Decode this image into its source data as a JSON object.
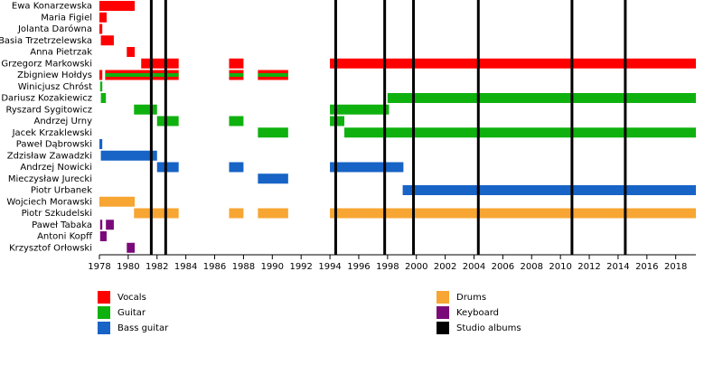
{
  "chart_data": {
    "type": "timeline",
    "categories": [
      "Ewa Konarzewska",
      "Maria Figiel",
      "Jolanta Darówna",
      "Basia Trzetrzelewska",
      "Anna Pietrzak",
      "Grzegorz Markowski",
      "Zbigniew Hołdys",
      "Winicjusz Chróst",
      "Dariusz Kozakiewicz",
      "Ryszard Sygitowicz",
      "Andrzej Urny",
      "Jacek Krzaklewski",
      "Paweł Dąbrowski",
      "Zdzisław Zawadzki",
      "Andrzej Nowicki",
      "Mieczysław Jurecki",
      "Piotr Urbanek",
      "Wojciech Morawski",
      "Piotr Szkudelski",
      "Paweł Tabaka",
      "Antoni Kopff",
      "Krzysztof Orłowski"
    ],
    "series": [
      {
        "name": "Vocals",
        "color": "#ff0000",
        "values": [
          [
            [
              1978,
              1980.45
            ]
          ],
          [
            [
              1978,
              1978.5
            ]
          ],
          [
            [
              1978,
              1978.2
            ]
          ],
          [
            [
              1978.1,
              1979
            ]
          ],
          [
            [
              1979.9,
              1980.45
            ]
          ],
          [
            [
              1980.9,
              1983.5
            ],
            [
              1987,
              1988
            ],
            [
              1994,
              2019.4
            ]
          ],
          [
            [
              1978,
              1978.2
            ],
            [
              1978.4,
              1983.5
            ],
            [
              1987,
              1988
            ],
            [
              1989,
              1991.1
            ]
          ],
          null,
          null,
          null,
          null,
          null,
          null,
          null,
          null,
          null,
          null,
          null,
          null,
          null,
          null,
          null
        ]
      },
      {
        "name": "Guitar",
        "color": "#0fb10f",
        "values": [
          null,
          null,
          null,
          null,
          null,
          null,
          [
            [
              1978.4,
              1983.5
            ],
            [
              1987,
              1988
            ],
            [
              1989,
              1991.1
            ]
          ],
          [
            [
              1978.05,
              1978.2
            ]
          ],
          [
            [
              1978.1,
              1978.45
            ],
            [
              1998,
              2019.4
            ]
          ],
          [
            [
              1980.4,
              1982
            ],
            [
              1994,
              1998.1
            ]
          ],
          [
            [
              1982,
              1983.5
            ],
            [
              1987,
              1988
            ],
            [
              1994,
              1995
            ]
          ],
          [
            [
              1989,
              1991.1
            ],
            [
              1995,
              2019.4
            ]
          ],
          null,
          null,
          null,
          null,
          null,
          null,
          null,
          null,
          null,
          null
        ]
      },
      {
        "name": "Bass guitar",
        "color": "#1763c6",
        "values": [
          null,
          null,
          null,
          null,
          null,
          null,
          null,
          null,
          null,
          null,
          null,
          null,
          [
            [
              1978,
              1978.2
            ]
          ],
          [
            [
              1978.1,
              1982
            ]
          ],
          [
            [
              1982,
              1983.5
            ],
            [
              1987,
              1988
            ],
            [
              1994,
              1999.1
            ]
          ],
          [
            [
              1989,
              1991.1
            ]
          ],
          [
            [
              1999.05,
              2019.4
            ]
          ],
          null,
          null,
          null,
          null,
          null
        ]
      },
      {
        "name": "Drums",
        "color": "#f7a533",
        "values": [
          null,
          null,
          null,
          null,
          null,
          null,
          null,
          null,
          null,
          null,
          null,
          null,
          null,
          null,
          null,
          null,
          null,
          [
            [
              1978,
              1980.45
            ]
          ],
          [
            [
              1980.4,
              1983.5
            ],
            [
              1987,
              1988
            ],
            [
              1989,
              1991.1
            ],
            [
              1994,
              2019.4
            ]
          ],
          null,
          null,
          null
        ]
      },
      {
        "name": "Keyboard",
        "color": "#7a0a7a",
        "values": [
          null,
          null,
          null,
          null,
          null,
          null,
          null,
          null,
          null,
          null,
          null,
          null,
          null,
          null,
          null,
          null,
          null,
          null,
          null,
          [
            [
              1978.05,
              1978.2
            ],
            [
              1978.45,
              1979
            ]
          ],
          [
            [
              1978.05,
              1978.5
            ]
          ],
          [
            [
              1979.9,
              1980.45
            ]
          ]
        ]
      }
    ],
    "albums": {
      "name": "Studio albums",
      "color": "#000000",
      "x": [
        1981.6,
        1982.6,
        1994.4,
        1997.8,
        1999.8,
        2004.3,
        2010.8,
        2014.5
      ]
    },
    "xlim": [
      1978,
      2019.4
    ],
    "xticks": [
      1978,
      1980,
      1982,
      1984,
      1986,
      1988,
      1990,
      1992,
      1994,
      1996,
      1998,
      2000,
      2002,
      2004,
      2006,
      2008,
      2010,
      2012,
      2014,
      2016,
      2018
    ]
  }
}
